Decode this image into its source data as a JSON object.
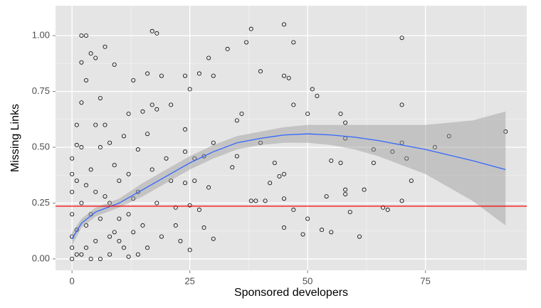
{
  "chart_data": {
    "type": "scatter",
    "x_label": "Sponsored developers",
    "y_label": "Missing Links",
    "xlim": [
      -3.5,
      96.5
    ],
    "ylim": [
      -0.051,
      1.134
    ],
    "xticks": [
      0,
      25,
      50,
      75
    ],
    "yticks": [
      {
        "value": 0,
        "label": "0.00"
      },
      0.25,
      {
        "value": 0.5,
        "label": "0.50"
      },
      0.75,
      {
        "value": 1,
        "label": "1.00"
      }
    ],
    "grid": true,
    "point_color": "#000000",
    "x": [
      1,
      2,
      3,
      2,
      4,
      5,
      7,
      9,
      13,
      17,
      18,
      16,
      19,
      24,
      25,
      27,
      29,
      30,
      33,
      37,
      38,
      40,
      45,
      47,
      45,
      46,
      51,
      52,
      47,
      50,
      57,
      58,
      70,
      70,
      92,
      80,
      77,
      70,
      71,
      68,
      64,
      64,
      58,
      55,
      57,
      54,
      58,
      62,
      58,
      59,
      66,
      67,
      70,
      72,
      61,
      53,
      55,
      49,
      50,
      47,
      45,
      45,
      45,
      43,
      44,
      42,
      38,
      39,
      41,
      40,
      35,
      34,
      36,
      35,
      30,
      28,
      29,
      30,
      28,
      27,
      25,
      25,
      23,
      22,
      24,
      26,
      26,
      24,
      24,
      21,
      18,
      17,
      15,
      14,
      12,
      12,
      13,
      11,
      8,
      6,
      5,
      3,
      1,
      0,
      0,
      0,
      0,
      0,
      1,
      2,
      3,
      4,
      5,
      6,
      7,
      8,
      9,
      10,
      11,
      12,
      14,
      15,
      16,
      17,
      18,
      19,
      20,
      21,
      22,
      2,
      3,
      4,
      1,
      2,
      6,
      7,
      9,
      10,
      13,
      16,
      0,
      1,
      0,
      2,
      4,
      6,
      8,
      10,
      12,
      14,
      3,
      5,
      8
    ],
    "y": [
      0.51,
      1.0,
      1.0,
      0.88,
      0.92,
      0.9,
      0.95,
      0.87,
      0.8,
      1.02,
      1.01,
      0.83,
      0.82,
      0.82,
      0.76,
      0.83,
      0.9,
      0.82,
      0.94,
      0.97,
      1.03,
      0.84,
      1.05,
      0.97,
      0.82,
      0.81,
      0.76,
      0.73,
      0.69,
      0.65,
      0.65,
      0.61,
      0.99,
      0.69,
      0.57,
      0.55,
      0.5,
      0.52,
      0.45,
      0.48,
      0.49,
      0.43,
      0.54,
      0.44,
      0.43,
      0.28,
      0.31,
      0.31,
      0.29,
      0.21,
      0.23,
      0.22,
      0.26,
      0.35,
      0.1,
      0.13,
      0.12,
      0.11,
      0.18,
      0.22,
      0.14,
      0.27,
      0.38,
      0.43,
      0.37,
      0.34,
      0.26,
      0.26,
      0.26,
      0.52,
      0.46,
      0.41,
      0.65,
      0.62,
      0.52,
      0.46,
      0.32,
      0.09,
      0.14,
      0.22,
      0.24,
      0.04,
      0.08,
      0.23,
      0.34,
      0.35,
      0.45,
      0.48,
      0.58,
      0.69,
      0.67,
      0.69,
      0.66,
      0.49,
      0.38,
      0.2,
      0.12,
      0.05,
      0.02,
      0.18,
      0.08,
      0.05,
      0.02,
      0.0,
      0.1,
      0.2,
      0.3,
      0.45,
      0.6,
      0.7,
      0.8,
      0.4,
      0.3,
      0.5,
      0.6,
      0.25,
      0.12,
      0.35,
      0.55,
      0.65,
      0.3,
      0.15,
      0.05,
      0.4,
      0.25,
      0.1,
      0.45,
      0.35,
      0.15,
      0.25,
      0.15,
      0.2,
      0.35,
      0.5,
      0.72,
      0.28,
      0.42,
      0.08,
      0.27,
      0.56,
      0.05,
      0.13,
      0.38,
      0.02,
      0.0,
      0.0,
      0.1,
      0.18,
      0.01,
      0.02,
      0.33,
      0.6,
      0.52
    ],
    "smooth": {
      "color": "#3366ff",
      "band_color": "#999999",
      "x": [
        0,
        2,
        5,
        10,
        15,
        20,
        25,
        30,
        35,
        40,
        45,
        50,
        55,
        60,
        65,
        70,
        75,
        80,
        85,
        92
      ],
      "y": [
        0.09,
        0.16,
        0.21,
        0.25,
        0.31,
        0.37,
        0.43,
        0.48,
        0.52,
        0.54,
        0.555,
        0.56,
        0.555,
        0.545,
        0.53,
        0.51,
        0.49,
        0.465,
        0.44,
        0.4
      ],
      "lower": [
        0.06,
        0.14,
        0.19,
        0.23,
        0.28,
        0.34,
        0.4,
        0.45,
        0.49,
        0.51,
        0.52,
        0.52,
        0.51,
        0.49,
        0.46,
        0.42,
        0.38,
        0.32,
        0.26,
        0.15
      ],
      "upper": [
        0.12,
        0.18,
        0.23,
        0.27,
        0.34,
        0.4,
        0.46,
        0.51,
        0.55,
        0.57,
        0.59,
        0.6,
        0.6,
        0.6,
        0.6,
        0.6,
        0.6,
        0.61,
        0.62,
        0.66
      ]
    },
    "hline": {
      "value": 0.236,
      "color": "#ff0000"
    }
  }
}
